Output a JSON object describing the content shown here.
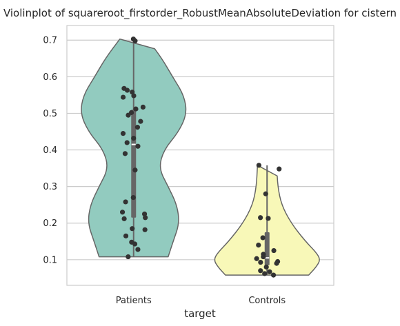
{
  "chart_data": {
    "type": "violin",
    "title": "Violinplot of squareroot_firstorder_RobustMeanAbsoluteDeviation for cistern",
    "xlabel": "target",
    "ylabel": "",
    "ylim": [
      0.03,
      0.74
    ],
    "yticks": [
      0.1,
      0.2,
      0.3,
      0.4,
      0.5,
      0.6,
      0.7
    ],
    "grid": "horizontal",
    "categories": [
      "Patients",
      "Controls"
    ],
    "colors": {
      "Patients": "#92cbbf",
      "Controls": "#f8f8b8",
      "outline": "#666666",
      "points": "#333333",
      "box": "#666666"
    },
    "series": [
      {
        "category": "Patients",
        "min": 0.108,
        "q1": 0.215,
        "median": 0.415,
        "q3": 0.51,
        "max": 0.703,
        "density": [
          [
            0.108,
            0.55
          ],
          [
            0.15,
            0.63
          ],
          [
            0.2,
            0.73
          ],
          [
            0.25,
            0.69
          ],
          [
            0.3,
            0.55
          ],
          [
            0.35,
            0.4
          ],
          [
            0.4,
            0.48
          ],
          [
            0.45,
            0.72
          ],
          [
            0.5,
            0.85
          ],
          [
            0.55,
            0.8
          ],
          [
            0.6,
            0.62
          ],
          [
            0.65,
            0.45
          ],
          [
            0.703,
            0.22
          ]
        ],
        "points": [
          0.703,
          0.698,
          0.568,
          0.563,
          0.558,
          0.548,
          0.544,
          0.517,
          0.512,
          0.502,
          0.495,
          0.478,
          0.462,
          0.445,
          0.432,
          0.42,
          0.41,
          0.39,
          0.345,
          0.27,
          0.258,
          0.23,
          0.225,
          0.215,
          0.212,
          0.185,
          0.182,
          0.165,
          0.148,
          0.143,
          0.128,
          0.108
        ]
      },
      {
        "category": "Controls",
        "min": 0.058,
        "q1": 0.085,
        "median": 0.105,
        "q3": 0.175,
        "max": 0.358,
        "density": [
          [
            0.058,
            0.78
          ],
          [
            0.08,
            0.92
          ],
          [
            0.1,
            1.0
          ],
          [
            0.12,
            0.92
          ],
          [
            0.15,
            0.72
          ],
          [
            0.2,
            0.45
          ],
          [
            0.25,
            0.27
          ],
          [
            0.3,
            0.2
          ],
          [
            0.358,
            0.18
          ]
        ],
        "points": [
          0.358,
          0.348,
          0.28,
          0.215,
          0.213,
          0.16,
          0.14,
          0.125,
          0.115,
          0.108,
          0.103,
          0.095,
          0.093,
          0.09,
          0.08,
          0.07,
          0.067,
          0.062,
          0.058
        ]
      }
    ]
  }
}
